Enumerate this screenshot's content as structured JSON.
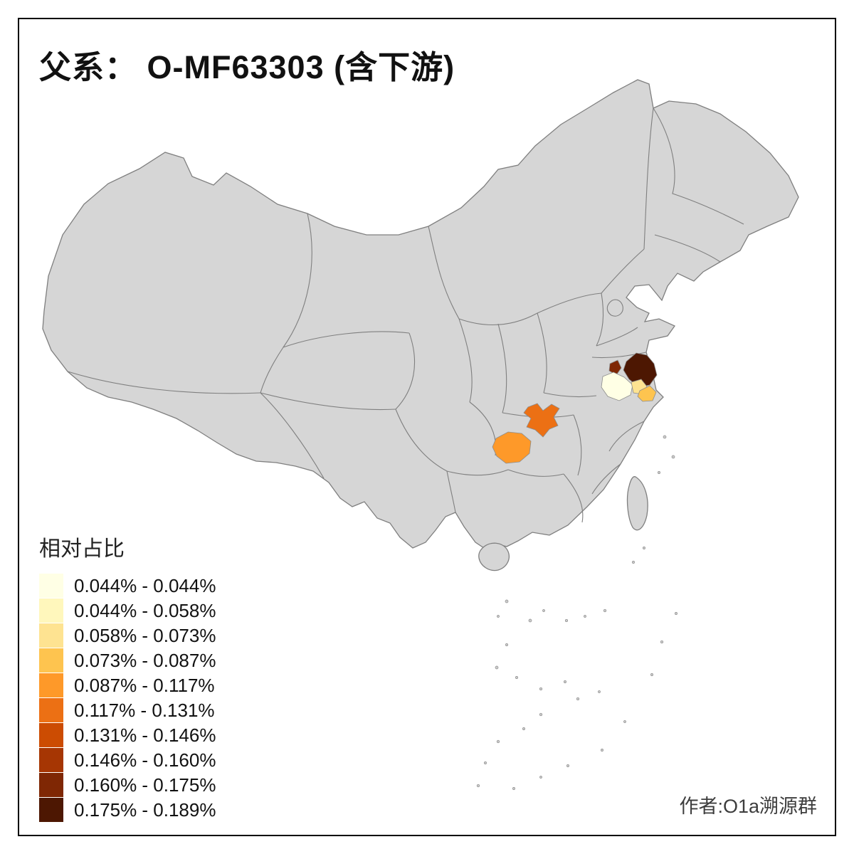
{
  "title": "父系： O-MF63303 (含下游)",
  "legend": {
    "title": "相对占比",
    "entries": [
      {
        "range": "0.044% - 0.044%",
        "color": "#FFFFE5"
      },
      {
        "range": "0.044% - 0.058%",
        "color": "#FFF7BC"
      },
      {
        "range": "0.058% - 0.073%",
        "color": "#FEE391"
      },
      {
        "range": "0.073% - 0.087%",
        "color": "#FEC44F"
      },
      {
        "range": "0.087% - 0.117%",
        "color": "#FE9929"
      },
      {
        "range": "0.117% - 0.131%",
        "color": "#EC7014"
      },
      {
        "range": "0.131% - 0.146%",
        "color": "#CC4C02"
      },
      {
        "range": "0.146% - 0.160%",
        "color": "#A63603"
      },
      {
        "range": "0.160% - 0.175%",
        "color": "#7F2704"
      },
      {
        "range": "0.175% - 0.189%",
        "color": "#4D1702"
      }
    ]
  },
  "author": "作者:O1a溯源群",
  "map": {
    "base_fill": "#D6D6D6",
    "border_color": "#7F7F7F",
    "background": "#FFFFFF"
  },
  "regions": [
    {
      "id": "region-east-darkest",
      "color": "#4D1702",
      "range": "0.175% - 0.189%"
    },
    {
      "id": "region-east-dark",
      "color": "#7F2704",
      "range": "0.160% - 0.175%"
    },
    {
      "id": "region-east-cream",
      "color": "#FFFFE5",
      "range": "0.044% - 0.044%"
    },
    {
      "id": "region-east-yellow",
      "color": "#FEE391",
      "range": "0.058% - 0.073%"
    },
    {
      "id": "region-east-orange",
      "color": "#FEC44F",
      "range": "0.073% - 0.087%"
    },
    {
      "id": "region-central-orange",
      "color": "#EC7014",
      "range": "0.117% - 0.131%"
    },
    {
      "id": "region-southwest",
      "color": "#FE9929",
      "range": "0.087% - 0.117%"
    }
  ]
}
